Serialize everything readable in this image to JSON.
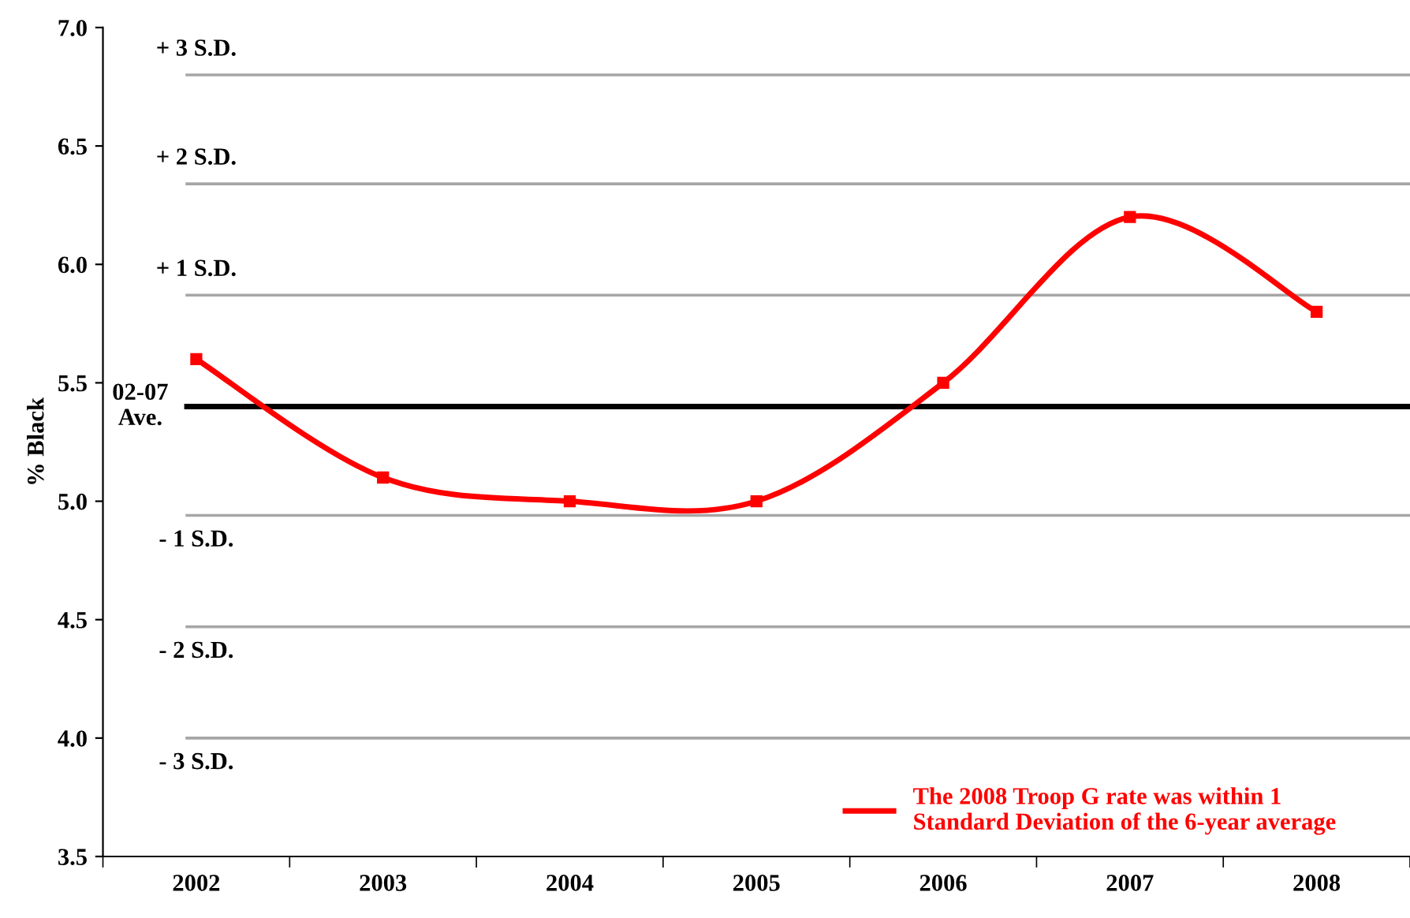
{
  "chart_data": {
    "type": "line",
    "ylabel": "% Black",
    "categories": [
      "2002",
      "2003",
      "2004",
      "2005",
      "2006",
      "2007",
      "2008"
    ],
    "series": [
      {
        "name": "The 2008 Troop G rate was within 1\nStandard Deviation of the 6-year average",
        "color": "#ff0000",
        "values": [
          5.6,
          5.1,
          5.0,
          5.0,
          5.5,
          6.2,
          5.8
        ]
      }
    ],
    "ylim": [
      3.5,
      7.0
    ],
    "yticks": [
      {
        "value": 3.5,
        "label": "3.5"
      },
      {
        "value": 4.0,
        "label": "4.0"
      },
      {
        "value": 4.5,
        "label": "4.5"
      },
      {
        "value": 5.0,
        "label": "5.0"
      },
      {
        "value": 5.5,
        "label": "5.5"
      },
      {
        "value": 6.0,
        "label": "6.0"
      },
      {
        "value": 6.5,
        "label": "6.5"
      },
      {
        "value": 7.0,
        "label": "7.0"
      }
    ],
    "ref_lines": [
      {
        "axis": "y",
        "value": 6.8,
        "label": "+ 3 S.D.",
        "color": "#a6a6a6"
      },
      {
        "axis": "y",
        "value": 6.34,
        "label": "+ 2 S.D.",
        "color": "#a6a6a6"
      },
      {
        "axis": "y",
        "value": 5.87,
        "label": "+ 1 S.D.",
        "color": "#a6a6a6"
      },
      {
        "axis": "y",
        "value": 5.4,
        "label": "02-07\nAve.",
        "color": "#000000"
      },
      {
        "axis": "y",
        "value": 4.94,
        "label": "- 1 S.D.",
        "color": "#a6a6a6"
      },
      {
        "axis": "y",
        "value": 4.47,
        "label": "- 2 S.D.",
        "color": "#a6a6a6"
      },
      {
        "axis": "y",
        "value": 4.0,
        "label": "- 3 S.D.",
        "color": "#a6a6a6"
      }
    ],
    "marker": "square",
    "line_style": "solid",
    "grid": false,
    "legend": "bottom right"
  }
}
